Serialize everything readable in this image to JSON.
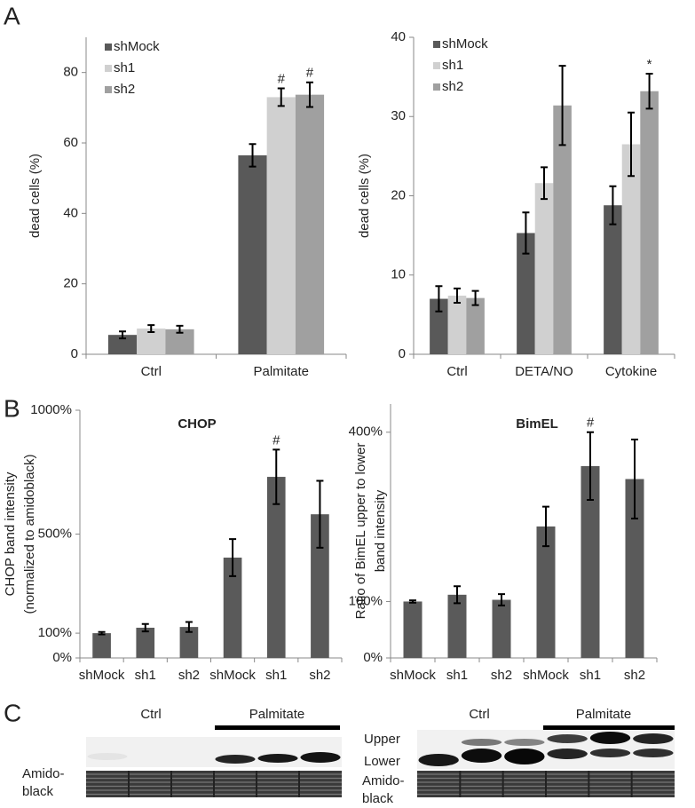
{
  "panels": [
    "A",
    "B",
    "C"
  ],
  "chart_data": [
    {
      "type": "bar",
      "ylabel": [
        "dead cells (%)"
      ],
      "categories": [
        "Ctrl",
        "Palmitate"
      ],
      "ylim": [
        0,
        90
      ],
      "yticks": [
        0,
        20,
        40,
        60,
        80
      ],
      "series": [
        {
          "name": "shMock",
          "color": "#595959",
          "values": [
            5.5,
            56.5
          ],
          "errors": [
            1,
            3.2
          ],
          "annotations": [
            null,
            null
          ]
        },
        {
          "name": "sh1",
          "color": "#d0d0d0",
          "values": [
            7.3,
            73
          ],
          "errors": [
            1,
            2.5
          ],
          "annotations": [
            null,
            "#"
          ]
        },
        {
          "name": "sh2",
          "color": "#a0a0a0",
          "values": [
            7.1,
            73.7
          ],
          "errors": [
            1,
            3.5
          ],
          "annotations": [
            null,
            "#"
          ]
        }
      ]
    },
    {
      "type": "bar",
      "ylabel": [
        "dead cells (%)"
      ],
      "categories": [
        "Ctrl",
        "DETA/NO",
        "Cytokine"
      ],
      "ylim": [
        0,
        40
      ],
      "yticks": [
        0,
        10,
        20,
        30,
        40
      ],
      "series": [
        {
          "name": "shMock",
          "color": "#595959",
          "values": [
            7,
            15.3,
            18.8
          ],
          "errors": [
            1.6,
            2.6,
            2.4
          ],
          "annotations": [
            null,
            null,
            null
          ]
        },
        {
          "name": "sh1",
          "color": "#d0d0d0",
          "values": [
            7.4,
            21.6,
            26.5
          ],
          "errors": [
            0.9,
            2,
            4
          ],
          "annotations": [
            null,
            null,
            null
          ]
        },
        {
          "name": "sh2",
          "color": "#a0a0a0",
          "values": [
            7.1,
            31.4,
            33.2
          ],
          "errors": [
            0.9,
            5,
            2.2
          ],
          "annotations": [
            null,
            null,
            "*"
          ]
        }
      ]
    },
    {
      "type": "bar",
      "title": "CHOP",
      "ylabel": [
        "CHOP band intensity",
        "(normalized to amidoblack)"
      ],
      "categories": [
        "shMock",
        "sh1",
        "sh2",
        "shMock",
        "sh1",
        "sh2"
      ],
      "ylim": [
        0,
        1000
      ],
      "yticks": [
        {
          "value": 0,
          "label": "0%"
        },
        {
          "value": 100,
          "label": "100%"
        },
        {
          "value": 500,
          "label": "500%"
        },
        {
          "value": 1000,
          "label": "1000%"
        }
      ],
      "color": "#5a5a5a",
      "values": [
        100,
        122,
        125,
        405,
        731,
        580
      ],
      "errors": [
        5,
        15,
        20,
        75,
        110,
        135
      ],
      "annotations": [
        null,
        null,
        null,
        null,
        "#",
        null
      ]
    },
    {
      "type": "bar",
      "title": "BimEL",
      "ylabel": [
        "Ratio of BimEL upper to lower",
        "band intensity"
      ],
      "categories": [
        "shMock",
        "sh1",
        "sh2",
        "shMock",
        "sh1",
        "sh2"
      ],
      "ylim": [
        0,
        450
      ],
      "yticks": [
        {
          "value": 0,
          "label": "0%"
        },
        {
          "value": 100,
          "label": "100%"
        },
        {
          "value": 400,
          "label": "400%"
        }
      ],
      "color": "#5a5a5a",
      "values": [
        100,
        112,
        103,
        233,
        340,
        317
      ],
      "errors": [
        2,
        15,
        10,
        35,
        60,
        70
      ],
      "annotations": [
        null,
        null,
        null,
        null,
        "#",
        null
      ]
    }
  ],
  "blots": [
    {
      "groups": [
        "Ctrl",
        "Palmitate"
      ],
      "row_label": [
        "Amido-",
        "black"
      ]
    },
    {
      "groups": [
        "Ctrl",
        "Palmitate"
      ],
      "bands": [
        "Upper",
        "Lower"
      ],
      "row_label": [
        "Amido-",
        "black"
      ]
    }
  ]
}
